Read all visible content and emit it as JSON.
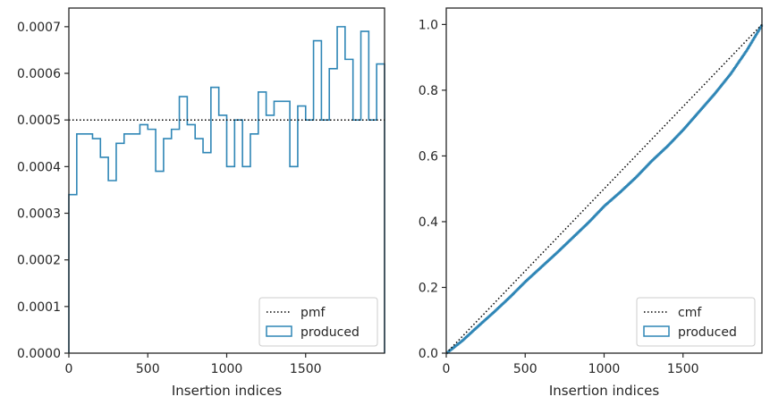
{
  "chart_data": [
    {
      "type": "step-histogram",
      "xlabel": "Insertion indices",
      "ylabel": "",
      "xlim": [
        0,
        2000
      ],
      "ylim": [
        0,
        0.00074
      ],
      "xticks": [
        0,
        500,
        1000,
        1500
      ],
      "xtick_labels": [
        "0",
        "500",
        "1000",
        "1500"
      ],
      "yticks": [
        0,
        0.0001,
        0.0002,
        0.0003,
        0.0004,
        0.0005,
        0.0006,
        0.0007
      ],
      "ytick_labels": [
        "0.0000",
        "0.0001",
        "0.0002",
        "0.0003",
        "0.0004",
        "0.0005",
        "0.0006",
        "0.0007"
      ],
      "reference": {
        "name": "pmf",
        "style": "dotted",
        "color": "#000000",
        "value": 0.0005
      },
      "series": [
        {
          "name": "produced",
          "color": "#2f86b6",
          "bin_edges": [
            0,
            50,
            150,
            200,
            250,
            300,
            350,
            450,
            500,
            550,
            600,
            650,
            700,
            750,
            800,
            850,
            900,
            950,
            1000,
            1050,
            1100,
            1150,
            1200,
            1250,
            1300,
            1400,
            1450,
            1500,
            1550,
            1600,
            1650,
            1700,
            1750,
            1800,
            1850,
            1900,
            1950,
            2000
          ],
          "values": [
            0.00034,
            0.00047,
            0.00046,
            0.00042,
            0.00037,
            0.00045,
            0.00047,
            0.00049,
            0.00048,
            0.00039,
            0.00046,
            0.00048,
            0.00055,
            0.00049,
            0.00046,
            0.00043,
            0.00057,
            0.00051,
            0.0004,
            0.0005,
            0.0004,
            0.00047,
            0.00056,
            0.00051,
            0.00054,
            0.0004,
            0.00053,
            0.0005,
            0.00067,
            0.0005,
            0.00061,
            0.0007,
            0.00063,
            0.0005,
            0.00069,
            0.0005,
            0.00062
          ]
        }
      ],
      "legend": {
        "position": "lower-right",
        "entries": [
          "pmf",
          "produced"
        ]
      },
      "grid": false
    },
    {
      "type": "step-cumulative",
      "xlabel": "Insertion indices",
      "ylabel": "",
      "xlim": [
        0,
        2000
      ],
      "ylim": [
        0,
        1.05
      ],
      "xticks": [
        0,
        500,
        1000,
        1500
      ],
      "xtick_labels": [
        "0",
        "500",
        "1000",
        "1500"
      ],
      "yticks": [
        0,
        0.2,
        0.4,
        0.6,
        0.8,
        1.0
      ],
      "ytick_labels": [
        "0.0",
        "0.2",
        "0.4",
        "0.6",
        "0.8",
        "1.0"
      ],
      "reference": {
        "name": "cmf",
        "style": "dotted",
        "color": "#000000",
        "x": [
          0,
          2000
        ],
        "y": [
          0,
          1.0
        ]
      },
      "series": [
        {
          "name": "produced",
          "color": "#2f86b6",
          "x": [
            0,
            100,
            200,
            300,
            400,
            500,
            600,
            700,
            800,
            900,
            1000,
            1100,
            1200,
            1300,
            1400,
            1500,
            1600,
            1700,
            1800,
            1900,
            2000
          ],
          "y": [
            0,
            0.038,
            0.082,
            0.125,
            0.17,
            0.218,
            0.262,
            0.306,
            0.352,
            0.398,
            0.448,
            0.49,
            0.535,
            0.585,
            0.63,
            0.68,
            0.735,
            0.79,
            0.85,
            0.92,
            1.0
          ]
        }
      ],
      "legend": {
        "position": "lower-right",
        "entries": [
          "cmf",
          "produced"
        ]
      },
      "grid": false
    }
  ]
}
